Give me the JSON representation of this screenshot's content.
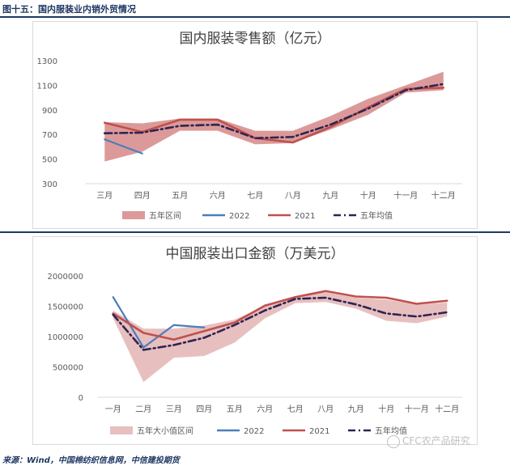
{
  "figure_caption": "图十五：国内服装业内销外贸情况",
  "source_note": "来源：Wind，中国棉纺织信息网，中信建投期货",
  "watermark": "CFC农产品研究",
  "colors": {
    "band": "#d99594",
    "y2022": "#4a7ebb",
    "y2021": "#c0504d",
    "avg": "#2e2452"
  },
  "chart_data": [
    {
      "type": "line",
      "title": "国内服装零售额（亿元）",
      "categories": [
        "三月",
        "四月",
        "五月",
        "六月",
        "七月",
        "八月",
        "九月",
        "十月",
        "十一月",
        "十二月"
      ],
      "yticks": [
        300,
        500,
        700,
        900,
        1100,
        1300
      ],
      "ylim": [
        300,
        1300
      ],
      "band": {
        "name": "五年区间",
        "low": [
          480,
          560,
          730,
          730,
          620,
          630,
          740,
          860,
          1040,
          1060
        ],
        "high": [
          800,
          790,
          830,
          830,
          730,
          730,
          850,
          990,
          1100,
          1210
        ]
      },
      "series": [
        {
          "name": "2022",
          "values": [
            660,
            545,
            null,
            null,
            null,
            null,
            null,
            null,
            null,
            null
          ]
        },
        {
          "name": "2021",
          "values": [
            795,
            720,
            820,
            820,
            670,
            635,
            760,
            920,
            1070,
            1080
          ]
        },
        {
          "name": "五年均值",
          "values": [
            710,
            715,
            770,
            780,
            670,
            680,
            780,
            910,
            1060,
            1110
          ]
        }
      ],
      "legend": [
        "五年区间",
        "2022",
        "2021",
        "五年均值"
      ]
    },
    {
      "type": "line",
      "title": "中国服装出口金额（万美元）",
      "categories": [
        "一月",
        "二月",
        "三月",
        "四月",
        "五月",
        "六月",
        "七月",
        "八月",
        "九月",
        "十月",
        "十一月",
        "十二月"
      ],
      "yticks": [
        0,
        500000,
        1000000,
        1500000,
        2000000
      ],
      "ylim": [
        0,
        2000000
      ],
      "band": {
        "name": "五年大小值区间",
        "low": [
          1300000,
          250000,
          650000,
          680000,
          900000,
          1300000,
          1550000,
          1570000,
          1460000,
          1260000,
          1220000,
          1330000
        ],
        "high": [
          1430000,
          1130000,
          1130000,
          1180000,
          1280000,
          1500000,
          1650000,
          1730000,
          1640000,
          1610000,
          1530000,
          1560000
        ]
      },
      "series": [
        {
          "name": "2022",
          "values": [
            1650000,
            820000,
            1190000,
            1150000,
            null,
            null,
            null,
            null,
            null,
            null,
            null,
            null
          ]
        },
        {
          "name": "2021",
          "values": [
            1380000,
            1060000,
            950000,
            1090000,
            1230000,
            1510000,
            1650000,
            1750000,
            1660000,
            1640000,
            1540000,
            1590000
          ]
        },
        {
          "name": "五年均值",
          "values": [
            1360000,
            780000,
            860000,
            980000,
            1190000,
            1430000,
            1620000,
            1640000,
            1530000,
            1380000,
            1330000,
            1400000
          ]
        }
      ],
      "legend": [
        "五年大小值区间",
        "2022",
        "2021",
        "五年均值"
      ]
    }
  ]
}
